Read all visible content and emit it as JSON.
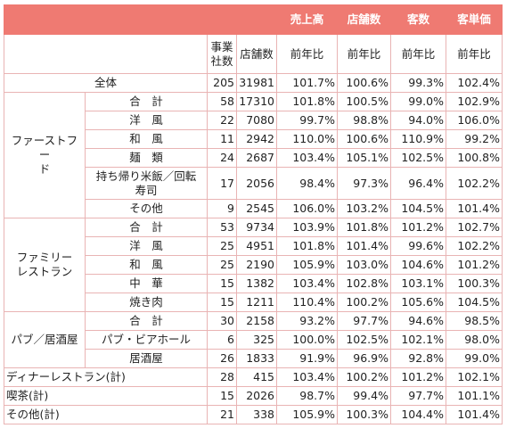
{
  "header": {
    "top": [
      "売上高",
      "店舗数",
      "客数",
      "客単価"
    ],
    "sub": [
      "事業社数",
      "店舗数",
      "前年比",
      "前年比",
      "前年比",
      "前年比"
    ]
  },
  "total": {
    "label": "全体",
    "values": [
      "205",
      "31981",
      "101.7%",
      "100.6%",
      "99.3%",
      "102.4%"
    ]
  },
  "groups": [
    {
      "name": "ファーストフー\nド",
      "items": [
        {
          "label": "合　計",
          "values": [
            "58",
            "17310",
            "101.8%",
            "100.5%",
            "99.0%",
            "102.9%"
          ]
        },
        {
          "label": "洋　風",
          "values": [
            "22",
            "7080",
            "99.7%",
            "98.8%",
            "94.0%",
            "106.0%"
          ]
        },
        {
          "label": "和　風",
          "values": [
            "11",
            "2942",
            "110.0%",
            "100.6%",
            "110.9%",
            "99.2%"
          ]
        },
        {
          "label": "麺　類",
          "values": [
            "24",
            "2687",
            "103.4%",
            "105.1%",
            "102.5%",
            "100.8%"
          ]
        },
        {
          "label": "持ち帰り米飯／回転\n寿司",
          "values": [
            "17",
            "2056",
            "98.4%",
            "97.3%",
            "96.4%",
            "102.2%"
          ]
        },
        {
          "label": "その他",
          "values": [
            "9",
            "2545",
            "106.0%",
            "103.2%",
            "104.5%",
            "101.4%"
          ]
        }
      ]
    },
    {
      "name": "ファミリー\nレストラン",
      "items": [
        {
          "label": "合　計",
          "values": [
            "53",
            "9734",
            "103.9%",
            "101.8%",
            "101.2%",
            "102.7%"
          ]
        },
        {
          "label": "洋　風",
          "values": [
            "25",
            "4951",
            "101.8%",
            "101.4%",
            "99.6%",
            "102.2%"
          ]
        },
        {
          "label": "和　風",
          "values": [
            "25",
            "2190",
            "105.9%",
            "103.0%",
            "104.6%",
            "101.2%"
          ]
        },
        {
          "label": "中　華",
          "values": [
            "15",
            "1382",
            "103.4%",
            "102.8%",
            "103.1%",
            "100.3%"
          ]
        },
        {
          "label": "焼き肉",
          "values": [
            "15",
            "1211",
            "110.4%",
            "100.2%",
            "105.6%",
            "104.5%"
          ]
        }
      ]
    },
    {
      "name": "パブ／居酒屋",
      "items": [
        {
          "label": "合　計",
          "values": [
            "30",
            "2158",
            "93.2%",
            "97.7%",
            "94.6%",
            "98.5%"
          ]
        },
        {
          "label": "パブ・ビアホール",
          "values": [
            "6",
            "325",
            "100.0%",
            "102.5%",
            "102.1%",
            "98.0%"
          ]
        },
        {
          "label": "居酒屋",
          "values": [
            "26",
            "1833",
            "91.9%",
            "96.9%",
            "92.8%",
            "99.0%"
          ]
        }
      ]
    }
  ],
  "others": [
    {
      "label": "ディナーレストラン(計)",
      "values": [
        "28",
        "415",
        "103.4%",
        "100.2%",
        "101.2%",
        "102.1%"
      ]
    },
    {
      "label": "喫茶(計)",
      "values": [
        "15",
        "2026",
        "98.7%",
        "99.4%",
        "97.7%",
        "101.1%"
      ]
    },
    {
      "label": "その他(計)",
      "values": [
        "21",
        "338",
        "105.9%",
        "100.3%",
        "104.4%",
        "101.4%"
      ]
    }
  ]
}
